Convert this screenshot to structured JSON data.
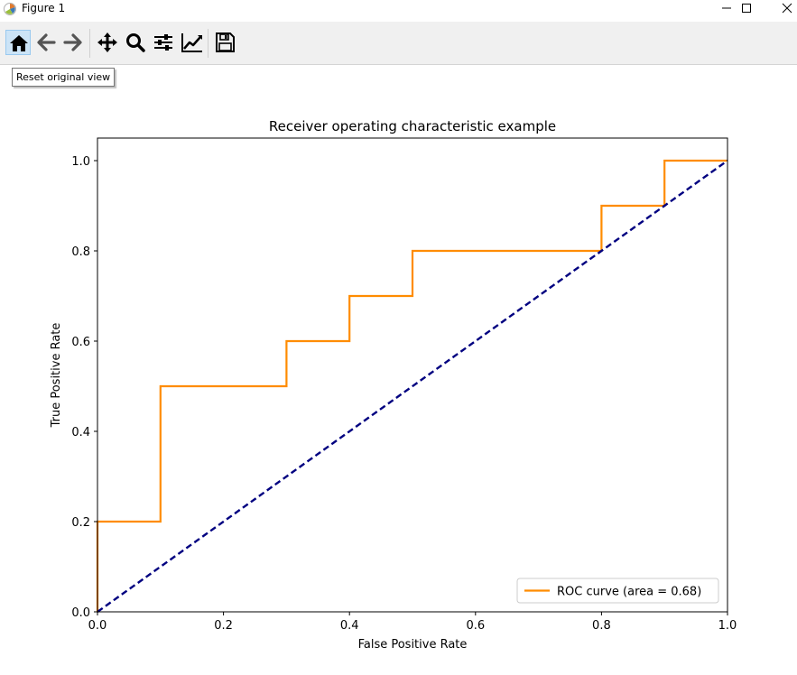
{
  "window": {
    "title": "Figure 1",
    "controls": {
      "minimize_icon": "minimize-icon",
      "maximize_icon": "maximize-icon",
      "close_icon": "close-icon"
    }
  },
  "toolbar": {
    "tools": [
      {
        "name": "home",
        "icon": "home-icon",
        "active": true
      },
      {
        "name": "back",
        "icon": "arrow-left-icon",
        "active": false
      },
      {
        "name": "forward",
        "icon": "arrow-right-icon",
        "active": false
      },
      {
        "name": "pan",
        "icon": "move-icon",
        "active": false
      },
      {
        "name": "zoom",
        "icon": "magnifier-icon",
        "active": false
      },
      {
        "name": "subplots",
        "icon": "sliders-icon",
        "active": false
      },
      {
        "name": "edit-axes",
        "icon": "line-chart-icon",
        "active": false
      },
      {
        "name": "save",
        "icon": "floppy-disk-icon",
        "active": false
      }
    ],
    "tooltip": "Reset original view"
  },
  "colors": {
    "roc_line": "#ff8c00",
    "diagonal": "#000080",
    "toolbar_bg": "#f0f0f0",
    "active_tool_bg": "#cce4f7"
  },
  "chart_data": {
    "type": "line",
    "title": "Receiver operating characteristic example",
    "xlabel": "False Positive Rate",
    "ylabel": "True Positive Rate",
    "xlim": [
      0.0,
      1.0
    ],
    "ylim": [
      0.0,
      1.05
    ],
    "xticks": [
      "0.0",
      "0.2",
      "0.4",
      "0.6",
      "0.8",
      "1.0"
    ],
    "yticks": [
      "0.0",
      "0.2",
      "0.4",
      "0.6",
      "0.8",
      "1.0"
    ],
    "grid": false,
    "legend_position": "lower-right",
    "series": [
      {
        "name": "ROC curve (area = 0.68)",
        "color": "#ff8c00",
        "style": "solid",
        "x": [
          0.0,
          0.0,
          0.1,
          0.1,
          0.3,
          0.3,
          0.4,
          0.4,
          0.5,
          0.5,
          0.8,
          0.8,
          0.9,
          0.9,
          1.0
        ],
        "y": [
          0.0,
          0.2,
          0.2,
          0.5,
          0.5,
          0.6,
          0.6,
          0.7,
          0.7,
          0.8,
          0.8,
          0.9,
          0.9,
          1.0,
          1.0
        ]
      },
      {
        "color": "#000080",
        "style": "dashed",
        "x": [
          0.0,
          1.0
        ],
        "y": [
          0.0,
          1.0
        ]
      }
    ]
  }
}
